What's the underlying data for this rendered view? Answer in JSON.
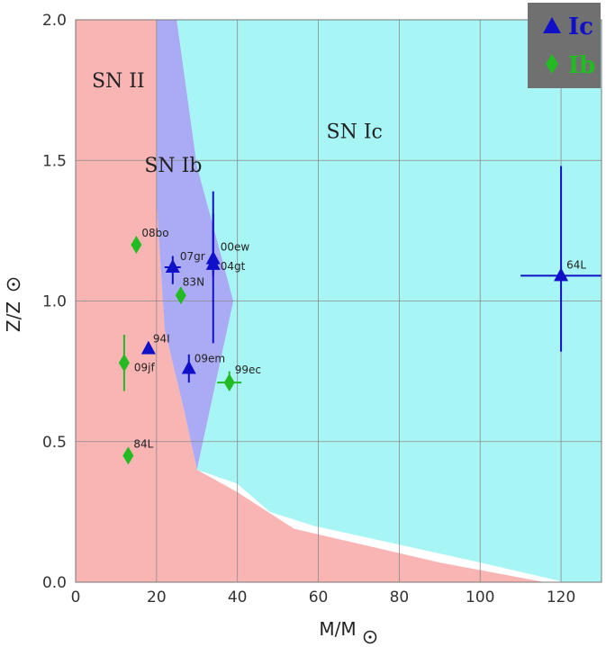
{
  "chart_data": {
    "type": "scatter",
    "title": "",
    "xlabel": "M/M",
    "ylabel": "Z/Z",
    "xlim": [
      0,
      130
    ],
    "ylim": [
      0,
      2
    ],
    "x_ticks": [
      0,
      20,
      40,
      60,
      80,
      100,
      120
    ],
    "y_ticks": [
      0.0,
      0.5,
      1.0,
      1.5,
      2.0
    ],
    "x_tick_labels": [
      "0",
      "20",
      "40",
      "60",
      "80",
      "100",
      "120"
    ],
    "y_tick_labels": [
      "0.0",
      "0.5",
      "1.0",
      "1.5",
      "2.0"
    ],
    "grid": true,
    "legend": {
      "placement": "top-right",
      "background": "#707070"
    },
    "colors": {
      "sn2_region": "#f9b4b4",
      "sn1b_region": "#aaaaf5",
      "sn1c_region": "#a8f5f5",
      "ic": "#1010c8",
      "ib": "#22bb22"
    },
    "regions": [
      {
        "label": "SN II",
        "polygon": [
          [
            0,
            0
          ],
          [
            0,
            2
          ],
          [
            20,
            2
          ],
          [
            20,
            1.35
          ],
          [
            22,
            0.9
          ],
          [
            27,
            0.6
          ],
          [
            30,
            0.4
          ],
          [
            40,
            0.32
          ],
          [
            54,
            0.19
          ],
          [
            72,
            0.13
          ],
          [
            90,
            0.07
          ],
          [
            116,
            0
          ]
        ]
      },
      {
        "label": "SN Ib",
        "polygon": [
          [
            20,
            2
          ],
          [
            25,
            2
          ],
          [
            30,
            1.48
          ],
          [
            39,
            1.0
          ],
          [
            30,
            0.4
          ],
          [
            27,
            0.6
          ],
          [
            22,
            0.9
          ],
          [
            20,
            1.35
          ]
        ]
      },
      {
        "label": "SN Ic",
        "polygon": [
          [
            25,
            2
          ],
          [
            130,
            2
          ],
          [
            130,
            0
          ],
          [
            121,
            0
          ],
          [
            100,
            0.07
          ],
          [
            59,
            0.2
          ],
          [
            48,
            0.25
          ],
          [
            40,
            0.35
          ],
          [
            30,
            0.4
          ],
          [
            39,
            1.0
          ],
          [
            30,
            1.48
          ]
        ]
      }
    ],
    "region_labels": [
      {
        "text": "SN II",
        "x": 4,
        "y": 1.76
      },
      {
        "text": "SN Ib",
        "x": 17,
        "y": 1.46
      },
      {
        "text": "SN Ic",
        "x": 62,
        "y": 1.58
      }
    ],
    "series": [
      {
        "name": "Ic",
        "marker": "triangle",
        "points": [
          {
            "label": "07gr",
            "x": 24,
            "y": 1.12,
            "xerr": 2,
            "yerr_lo": 0.06,
            "yerr_hi": 0.04
          },
          {
            "label": "00ew",
            "x": 34,
            "y": 1.15,
            "xerr": 0,
            "yerr_lo": 0.06,
            "yerr_hi": 0.24
          },
          {
            "label": "04gt",
            "x": 34,
            "y": 1.13,
            "xerr": 0,
            "yerr_lo": 0.28,
            "yerr_hi": 0.18
          },
          {
            "label": "94I",
            "x": 18,
            "y": 0.83,
            "xerr": 0,
            "yerr_lo": 0,
            "yerr_hi": 0
          },
          {
            "label": "09em",
            "x": 28,
            "y": 0.76,
            "xerr": 0,
            "yerr_lo": 0.05,
            "yerr_hi": 0.05
          },
          {
            "label": "64L",
            "x": 120,
            "y": 1.09,
            "xerr": 10,
            "yerr_lo": 0.27,
            "yerr_hi": 0.39
          }
        ]
      },
      {
        "name": "Ib",
        "marker": "diamond",
        "points": [
          {
            "label": "08bo",
            "x": 15,
            "y": 1.2,
            "xerr": 0,
            "yerr_lo": 0,
            "yerr_hi": 0
          },
          {
            "label": "83N",
            "x": 26,
            "y": 1.02,
            "xerr": 0,
            "yerr_lo": 0,
            "yerr_hi": 0
          },
          {
            "label": "09jf",
            "x": 12,
            "y": 0.78,
            "xerr": 0,
            "yerr_lo": 0.1,
            "yerr_hi": 0.1
          },
          {
            "label": "99ec",
            "x": 38,
            "y": 0.71,
            "xerr": 3,
            "yerr_lo": 0.02,
            "yerr_hi": 0.04
          },
          {
            "label": "84L",
            "x": 13,
            "y": 0.45,
            "xerr": 0,
            "yerr_lo": 0,
            "yerr_hi": 0
          }
        ]
      }
    ]
  }
}
